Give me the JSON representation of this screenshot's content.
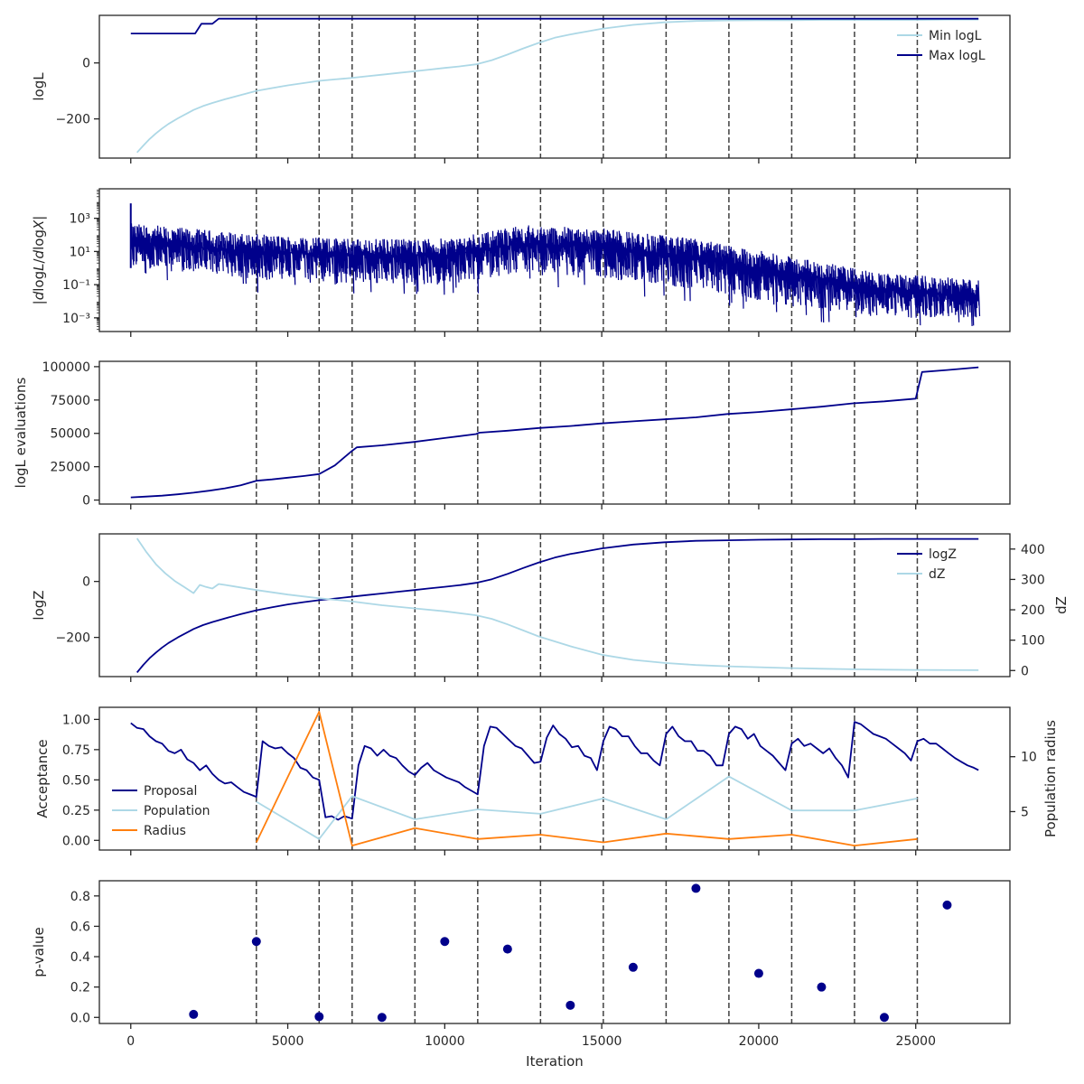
{
  "colors": {
    "navy": "#00008b",
    "lightblue": "#add8e6",
    "orange": "#ff7f0e",
    "vline": "#404040",
    "frame": "#262626"
  },
  "figure": {
    "xlabel": "Iteration",
    "xlim": [
      -1000,
      28000
    ],
    "xticks": [
      0,
      5000,
      10000,
      15000,
      20000,
      25000
    ],
    "xtick_labels": [
      "0",
      "5000",
      "10000",
      "15000",
      "20000",
      "25000"
    ],
    "vlines": [
      4000,
      6000,
      7050,
      9050,
      11050,
      13050,
      15050,
      17050,
      19050,
      21050,
      23050,
      25050
    ]
  },
  "chart_data": [
    {
      "id": "logl",
      "type": "line",
      "title": "",
      "ylabel": "logL",
      "ylim": [
        -340,
        170
      ],
      "scale": "linear",
      "yticks": [
        0,
        -200
      ],
      "ytick_labels": [
        "0",
        "−200"
      ],
      "legend": "top-right",
      "series": [
        {
          "name": "Min logL",
          "color": "#add8e6",
          "x": [
            200,
            400,
            600,
            800,
            1000,
            1200,
            1500,
            1800,
            2000,
            2300,
            2600,
            3000,
            3500,
            4000,
            4500,
            5000,
            5500,
            6000,
            6500,
            7000,
            7500,
            8000,
            8500,
            9000,
            9500,
            10000,
            10500,
            11000,
            11500,
            12000,
            12500,
            13000,
            13500,
            14000,
            14500,
            15000,
            16000,
            17000,
            18000,
            19000,
            20000,
            21000,
            22000,
            23000,
            24000,
            25000,
            26000,
            27000
          ],
          "y": [
            -320,
            -295,
            -272,
            -252,
            -234,
            -218,
            -198,
            -180,
            -168,
            -154,
            -143,
            -130,
            -115,
            -100,
            -90,
            -80,
            -72,
            -64,
            -59,
            -54,
            -48,
            -42,
            -36,
            -30,
            -24,
            -18,
            -12,
            -5,
            10,
            30,
            52,
            72,
            90,
            102,
            112,
            122,
            136,
            145,
            150,
            152,
            153,
            153,
            154,
            154,
            154,
            154,
            155,
            155
          ]
        },
        {
          "name": "Max logL",
          "color": "#00008b",
          "x": [
            0,
            2050,
            2250,
            2600,
            2800,
            3000,
            27000
          ],
          "y": [
            105,
            105,
            140,
            140,
            158,
            158,
            158
          ]
        }
      ]
    },
    {
      "id": "dlogl",
      "type": "line",
      "title": "",
      "ylabel": "|dlogL/dlogX|",
      "ylim": [
        0.00015,
        60000
      ],
      "scale": "log",
      "yticks": [
        1000,
        10,
        0.1,
        0.001
      ],
      "ytick_labels": [
        "10³",
        "10¹",
        "10⁻¹",
        "10⁻³"
      ],
      "band": {
        "color": "#00008b",
        "x": [
          0,
          4000,
          7000,
          10000,
          12500,
          15000,
          18000,
          21000,
          24000,
          27000
        ],
        "upper": [
          500,
          110,
          60,
          60,
          400,
          250,
          60,
          5,
          0.5,
          0.2
        ],
        "center": [
          40,
          10,
          6,
          6,
          30,
          20,
          4,
          0.5,
          0.05,
          0.02
        ],
        "lower": [
          1,
          0.2,
          0.1,
          0.1,
          0.5,
          0.3,
          0.05,
          0.005,
          0.001,
          0.001
        ],
        "spike_top": 8000,
        "spike_bottom": 0.0002
      }
    },
    {
      "id": "evals",
      "type": "line",
      "title": "",
      "ylabel": "logL evaluations",
      "ylim": [
        -3000,
        104000
      ],
      "scale": "linear",
      "yticks": [
        0,
        25000,
        50000,
        75000,
        100000
      ],
      "ytick_labels": [
        "0",
        "25000",
        "50000",
        "75000",
        "100000"
      ],
      "series": [
        {
          "name": "",
          "color": "#00008b",
          "x": [
            0,
            500,
            1000,
            1500,
            2000,
            2500,
            3000,
            3500,
            4000,
            4500,
            5000,
            5500,
            6000,
            6500,
            7000,
            7200,
            8000,
            9000,
            10000,
            11000,
            11100,
            12000,
            13000,
            14000,
            15000,
            16000,
            17000,
            18000,
            19000,
            20000,
            21000,
            22000,
            23000,
            24000,
            25000,
            25200,
            26000,
            27000
          ],
          "y": [
            2000,
            2600,
            3300,
            4300,
            5500,
            7000,
            8800,
            11000,
            14500,
            15500,
            16800,
            18000,
            19500,
            26000,
            36000,
            39500,
            41000,
            43500,
            46500,
            49500,
            50500,
            52000,
            54000,
            55500,
            57500,
            59000,
            60500,
            62000,
            64500,
            66000,
            68000,
            70000,
            72500,
            74000,
            76000,
            96000,
            97500,
            99500
          ]
        }
      ]
    },
    {
      "id": "logz",
      "type": "line",
      "title": "",
      "ylabel": "logZ",
      "ylabel_right": "dZ",
      "ylim": [
        -340,
        170
      ],
      "ylim_right": [
        -20,
        450
      ],
      "scale": "linear",
      "yticks": [
        0,
        -200
      ],
      "ytick_labels": [
        "0",
        "−200"
      ],
      "yticks_right": [
        400,
        300,
        200,
        100,
        0
      ],
      "ytick_labels_right": [
        "400",
        "300",
        "200",
        "100",
        "0"
      ],
      "legend": "top-right",
      "series": [
        {
          "name": "logZ",
          "color": "#00008b",
          "axis": "left",
          "x": [
            200,
            400,
            600,
            800,
            1000,
            1200,
            1500,
            1800,
            2000,
            2300,
            2600,
            3000,
            3500,
            4000,
            4500,
            5000,
            5500,
            6000,
            6500,
            7000,
            7500,
            8000,
            8500,
            9000,
            9500,
            10000,
            10500,
            11000,
            11500,
            12000,
            12500,
            13000,
            13500,
            14000,
            14500,
            15000,
            16000,
            17000,
            18000,
            19000,
            20000,
            21000,
            22000,
            23000,
            24000,
            25000,
            26000,
            27000
          ],
          "y": [
            -325,
            -298,
            -274,
            -254,
            -236,
            -220,
            -200,
            -182,
            -170,
            -156,
            -145,
            -132,
            -117,
            -103,
            -92,
            -82,
            -74,
            -67,
            -61,
            -55,
            -49,
            -43,
            -37,
            -31,
            -25,
            -19,
            -13,
            -5,
            8,
            27,
            48,
            68,
            85,
            98,
            108,
            118,
            132,
            140,
            145,
            147,
            149,
            150,
            151,
            151,
            152,
            152,
            152,
            152
          ]
        },
        {
          "name": "dZ",
          "color": "#add8e6",
          "axis": "right",
          "x": [
            200,
            500,
            800,
            1100,
            1400,
            1700,
            2000,
            2200,
            2400,
            2600,
            2800,
            3000,
            4000,
            5000,
            6000,
            7000,
            8000,
            9000,
            10000,
            11000,
            11500,
            12000,
            12500,
            13000,
            14000,
            15000,
            16000,
            17000,
            18000,
            19000,
            20000,
            21000,
            22000,
            23000,
            24000,
            25000,
            27000
          ],
          "y": [
            435,
            390,
            350,
            320,
            295,
            275,
            255,
            282,
            275,
            270,
            285,
            282,
            265,
            250,
            238,
            228,
            215,
            205,
            195,
            182,
            170,
            152,
            132,
            112,
            80,
            52,
            35,
            25,
            18,
            14,
            11,
            8,
            6,
            4,
            3,
            2,
            1
          ]
        }
      ]
    },
    {
      "id": "acceptance",
      "type": "line",
      "title": "",
      "ylabel": "Acceptance",
      "ylabel_right": "Population radius",
      "ylim": [
        -0.08,
        1.1
      ],
      "ylim_right": [
        1.5,
        14.5
      ],
      "scale": "linear",
      "yticks": [
        0.0,
        0.25,
        0.5,
        0.75,
        1.0
      ],
      "ytick_labels": [
        "0.00",
        "0.25",
        "0.50",
        "0.75",
        "1.00"
      ],
      "yticks_right": [
        5,
        10
      ],
      "ytick_labels_right": [
        "5",
        "10"
      ],
      "legend": "lower-left",
      "series": [
        {
          "name": "Proposal",
          "color": "#00008b",
          "axis": "left",
          "x": [
            0,
            200,
            400,
            600,
            800,
            1000,
            1200,
            1400,
            1600,
            1800,
            2000,
            2200,
            2400,
            2600,
            2800,
            3000,
            3200,
            3400,
            3600,
            3800,
            4000,
            4200,
            4400,
            4600,
            4800,
            5000,
            5200,
            5400,
            5600,
            5800,
            6000,
            6200,
            6400,
            6600,
            6800,
            7050,
            7250,
            7450,
            7650,
            7850,
            8050,
            8250,
            8450,
            8650,
            8850,
            9050,
            9250,
            9450,
            9650,
            9850,
            10050,
            10250,
            10450,
            10650,
            10850,
            11050,
            11250,
            11450,
            11650,
            11850,
            12050,
            12250,
            12450,
            12650,
            12850,
            13050,
            13250,
            13450,
            13650,
            13850,
            14050,
            14250,
            14450,
            14650,
            14850,
            15050,
            15250,
            15450,
            15650,
            15850,
            16050,
            16250,
            16450,
            16650,
            16850,
            17050,
            17250,
            17450,
            17650,
            17850,
            18050,
            18250,
            18450,
            18650,
            18850,
            19050,
            19250,
            19450,
            19650,
            19850,
            20050,
            20250,
            20450,
            20650,
            20850,
            21050,
            21250,
            21450,
            21650,
            21850,
            22050,
            22250,
            22450,
            22650,
            22850,
            23050,
            23250,
            23450,
            23650,
            23850,
            24050,
            24250,
            24450,
            24650,
            24850,
            25050,
            25250,
            25450,
            25650,
            25850,
            26050,
            26250,
            26450,
            26650,
            26850,
            27000
          ],
          "y": [
            0.97,
            0.93,
            0.92,
            0.86,
            0.82,
            0.8,
            0.74,
            0.72,
            0.75,
            0.67,
            0.64,
            0.58,
            0.62,
            0.55,
            0.5,
            0.47,
            0.48,
            0.44,
            0.4,
            0.38,
            0.36,
            0.82,
            0.78,
            0.76,
            0.77,
            0.72,
            0.68,
            0.6,
            0.58,
            0.52,
            0.5,
            0.19,
            0.2,
            0.17,
            0.2,
            0.18,
            0.62,
            0.78,
            0.76,
            0.7,
            0.75,
            0.7,
            0.68,
            0.62,
            0.57,
            0.54,
            0.6,
            0.64,
            0.58,
            0.55,
            0.52,
            0.5,
            0.48,
            0.44,
            0.41,
            0.38,
            0.78,
            0.94,
            0.93,
            0.88,
            0.83,
            0.78,
            0.76,
            0.7,
            0.64,
            0.65,
            0.85,
            0.95,
            0.88,
            0.84,
            0.77,
            0.78,
            0.7,
            0.68,
            0.58,
            0.82,
            0.94,
            0.92,
            0.86,
            0.86,
            0.78,
            0.72,
            0.72,
            0.66,
            0.62,
            0.88,
            0.94,
            0.86,
            0.82,
            0.82,
            0.74,
            0.74,
            0.7,
            0.62,
            0.62,
            0.88,
            0.94,
            0.92,
            0.84,
            0.88,
            0.78,
            0.74,
            0.7,
            0.64,
            0.58,
            0.8,
            0.84,
            0.78,
            0.8,
            0.76,
            0.72,
            0.76,
            0.68,
            0.62,
            0.52,
            0.98,
            0.96,
            0.92,
            0.88,
            0.86,
            0.84,
            0.8,
            0.76,
            0.72,
            0.66,
            0.82,
            0.84,
            0.8,
            0.8,
            0.76,
            0.72,
            0.68,
            0.65,
            0.62,
            0.6,
            0.58
          ]
        },
        {
          "name": "Population",
          "color": "#add8e6",
          "axis": "right",
          "x": [
            4000,
            6000,
            7050,
            9050,
            11050,
            13050,
            15050,
            17050,
            19050,
            21050,
            23050,
            25050
          ],
          "y": [
            5.9,
            2.5,
            6.4,
            4.3,
            5.2,
            4.8,
            6.2,
            4.3,
            8.2,
            5.1,
            5.1,
            6.2
          ]
        },
        {
          "name": "Radius",
          "color": "#ff7f0e",
          "axis": "right",
          "x": [
            4000,
            6000,
            7050,
            9050,
            11050,
            13050,
            15050,
            17050,
            19050,
            21050,
            23050,
            25050
          ],
          "y": [
            2.2,
            14.1,
            1.9,
            3.5,
            2.5,
            2.9,
            2.2,
            3.0,
            2.5,
            2.9,
            1.9,
            2.5
          ]
        }
      ]
    },
    {
      "id": "pvalue",
      "type": "scatter",
      "title": "",
      "ylabel": "p-value",
      "ylim": [
        -0.04,
        0.9
      ],
      "scale": "linear",
      "yticks": [
        0.0,
        0.2,
        0.4,
        0.6,
        0.8
      ],
      "ytick_labels": [
        "0.0",
        "0.2",
        "0.4",
        "0.6",
        "0.8"
      ],
      "series": [
        {
          "name": "",
          "color": "#00008b",
          "x": [
            2000,
            4000,
            6000,
            8000,
            10000,
            12000,
            14000,
            16000,
            18000,
            20000,
            22000,
            24000,
            26000
          ],
          "y": [
            0.02,
            0.5,
            0.005,
            0.0,
            0.5,
            0.45,
            0.08,
            0.33,
            0.85,
            0.29,
            0.2,
            0.0,
            0.74
          ]
        }
      ]
    }
  ]
}
